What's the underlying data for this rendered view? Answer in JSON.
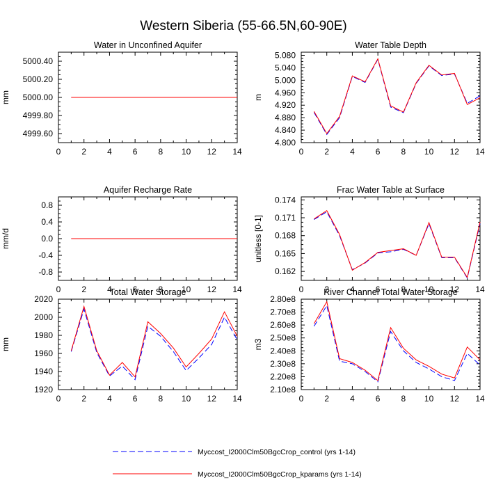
{
  "title": "Western Siberia (55-66.5N,60-90E)",
  "colors": {
    "control": "#0000ff",
    "kparams": "#ff0000",
    "axis": "#000000"
  },
  "legend": [
    {
      "label": "Myccost_I2000Clm50BgcCrop_control (yrs 1-14)",
      "color": "#0000ff",
      "style": "dashed"
    },
    {
      "label": "Myccost_I2000Clm50BgcCrop_kparams (yrs 1-14)",
      "color": "#ff0000",
      "style": "solid"
    }
  ],
  "chart_data": [
    {
      "type": "line",
      "title": "Water in Unconfined Aquifer",
      "ylabel": "mm",
      "xlim": [
        0,
        14
      ],
      "ylim": [
        4999.5,
        5000.5
      ],
      "xticks": [
        0,
        2,
        4,
        6,
        8,
        10,
        12,
        14
      ],
      "yticks": [
        4999.6,
        4999.8,
        5000.0,
        5000.2,
        5000.4
      ],
      "ytick_labels": [
        "4999.60",
        "4999.80",
        "5000.00",
        "5000.20",
        "5000.40"
      ],
      "x": [
        1,
        2,
        3,
        4,
        5,
        6,
        7,
        8,
        9,
        10,
        11,
        12,
        13,
        14
      ],
      "series": [
        {
          "name": "Myccost_I2000Clm50BgcCrop_control (yrs 1-14)",
          "values": [
            5000,
            5000,
            5000,
            5000,
            5000,
            5000,
            5000,
            5000,
            5000,
            5000,
            5000,
            5000,
            5000,
            5000
          ]
        },
        {
          "name": "Myccost_I2000Clm50BgcCrop_kparams (yrs 1-14)",
          "values": [
            5000,
            5000,
            5000,
            5000,
            5000,
            5000,
            5000,
            5000,
            5000,
            5000,
            5000,
            5000,
            5000,
            5000
          ]
        }
      ]
    },
    {
      "type": "line",
      "title": "Water Table Depth",
      "ylabel": "m",
      "xlim": [
        0,
        14
      ],
      "ylim": [
        4.8,
        5.09
      ],
      "xticks": [
        0,
        2,
        4,
        6,
        8,
        10,
        12,
        14
      ],
      "yticks": [
        4.8,
        4.84,
        4.88,
        4.92,
        4.96,
        5.0,
        5.04,
        5.08
      ],
      "ytick_labels": [
        "4.800",
        "4.840",
        "4.880",
        "4.920",
        "4.960",
        "5.000",
        "5.040",
        "5.080"
      ],
      "x": [
        1,
        2,
        3,
        4,
        5,
        6,
        7,
        8,
        9,
        10,
        11,
        12,
        13,
        14
      ],
      "series": [
        {
          "name": "Myccost_I2000Clm50BgcCrop_control (yrs 1-14)",
          "values": [
            4.897,
            4.826,
            4.88,
            5.012,
            4.993,
            5.067,
            4.914,
            4.896,
            4.99,
            5.046,
            5.015,
            5.02,
            4.926,
            4.95
          ]
        },
        {
          "name": "Myccost_I2000Clm50BgcCrop_kparams (yrs 1-14)",
          "values": [
            4.9,
            4.829,
            4.884,
            5.014,
            4.995,
            5.069,
            4.918,
            4.898,
            4.992,
            5.048,
            5.017,
            5.022,
            4.922,
            4.944
          ]
        }
      ]
    },
    {
      "type": "line",
      "title": "Aquifer Recharge Rate",
      "ylabel": "mm/d",
      "xlim": [
        0,
        14
      ],
      "ylim": [
        -1.0,
        1.0
      ],
      "xticks": [
        0,
        2,
        4,
        6,
        8,
        10,
        12,
        14
      ],
      "yticks": [
        -0.8,
        -0.4,
        0.0,
        0.4,
        0.8
      ],
      "ytick_labels": [
        "-0.8",
        "-0.4",
        "0.0",
        "0.4",
        "0.8"
      ],
      "x": [
        1,
        2,
        3,
        4,
        5,
        6,
        7,
        8,
        9,
        10,
        11,
        12,
        13,
        14
      ],
      "series": [
        {
          "name": "Myccost_I2000Clm50BgcCrop_control (yrs 1-14)",
          "values": [
            0,
            0,
            0,
            0,
            0,
            0,
            0,
            0,
            0,
            0,
            0,
            0,
            0,
            0
          ]
        },
        {
          "name": "Myccost_I2000Clm50BgcCrop_kparams (yrs 1-14)",
          "values": [
            0,
            0,
            0,
            0,
            0,
            0,
            0,
            0,
            0,
            0,
            0,
            0,
            0,
            0
          ]
        }
      ]
    },
    {
      "type": "line",
      "title": "Frac Water Table at Surface",
      "ylabel": "unitless [0-1]",
      "xlim": [
        0,
        14
      ],
      "ylim": [
        0.1605,
        0.1745
      ],
      "xticks": [
        0,
        2,
        4,
        6,
        8,
        10,
        12,
        14
      ],
      "yticks": [
        0.162,
        0.165,
        0.168,
        0.171,
        0.174
      ],
      "ytick_labels": [
        "0.162",
        "0.165",
        "0.168",
        "0.171",
        "0.174"
      ],
      "x": [
        1,
        2,
        3,
        4,
        5,
        6,
        7,
        8,
        9,
        10,
        11,
        12,
        13,
        14
      ],
      "series": [
        {
          "name": "Myccost_I2000Clm50BgcCrop_control (yrs 1-14)",
          "values": [
            0.1707,
            0.172,
            0.168,
            0.1623,
            0.1634,
            0.1651,
            0.1653,
            0.1657,
            0.1647,
            0.17,
            0.1643,
            0.1643,
            0.1609,
            0.17
          ]
        },
        {
          "name": "Myccost_I2000Clm50BgcCrop_kparams (yrs 1-14)",
          "values": [
            0.1708,
            0.1722,
            0.1682,
            0.1622,
            0.1635,
            0.1652,
            0.1655,
            0.1658,
            0.1647,
            0.1702,
            0.1644,
            0.1644,
            0.161,
            0.1703
          ]
        }
      ]
    },
    {
      "type": "line",
      "title": "Total Water Storage",
      "ylabel": "mm",
      "xlim": [
        0,
        14
      ],
      "ylim": [
        1920,
        2020
      ],
      "xticks": [
        0,
        2,
        4,
        6,
        8,
        10,
        12,
        14
      ],
      "yticks": [
        1920,
        1940,
        1960,
        1980,
        2000,
        2020
      ],
      "ytick_labels": [
        "1920",
        "1940",
        "1960",
        "1980",
        "2000",
        "2020"
      ],
      "x": [
        1,
        2,
        3,
        4,
        5,
        6,
        7,
        8,
        9,
        10,
        11,
        12,
        13,
        14
      ],
      "series": [
        {
          "name": "Myccost_I2000Clm50BgcCrop_control (yrs 1-14)",
          "values": [
            1962,
            2009,
            1961,
            1935,
            1946,
            1931,
            1990,
            1979,
            1962,
            1941,
            1955,
            1970,
            2000,
            1975
          ]
        },
        {
          "name": "Myccost_I2000Clm50BgcCrop_kparams (yrs 1-14)",
          "values": [
            1963,
            2012,
            1963,
            1936,
            1950,
            1934,
            1995,
            1982,
            1966,
            1945,
            1960,
            1976,
            2006,
            1979
          ]
        }
      ]
    },
    {
      "type": "line",
      "title": "River Channel Total Water Storage",
      "ylabel": "m3",
      "xlim": [
        0,
        14
      ],
      "ylim": [
        210000000.0,
        280000000.0
      ],
      "xticks": [
        0,
        2,
        4,
        6,
        8,
        10,
        12,
        14
      ],
      "yticks": [
        210000000.0,
        220000000.0,
        230000000.0,
        240000000.0,
        250000000.0,
        260000000.0,
        270000000.0,
        280000000.0
      ],
      "ytick_labels": [
        "2.10e8",
        "2.20e8",
        "2.30e8",
        "2.40e8",
        "2.50e8",
        "2.60e8",
        "2.70e8",
        "2.80e8"
      ],
      "x": [
        1,
        2,
        3,
        4,
        5,
        6,
        7,
        8,
        9,
        10,
        11,
        12,
        13,
        14
      ],
      "series": [
        {
          "name": "Myccost_I2000Clm50BgcCrop_control (yrs 1-14)",
          "values": [
            259000000,
            275000000,
            232000000,
            230000000,
            224000000,
            216000000,
            255000000,
            240000000,
            231000000,
            226000000,
            220000000,
            217000000,
            238000000,
            229000000
          ]
        },
        {
          "name": "Myccost_I2000Clm50BgcCrop_kparams (yrs 1-14)",
          "values": [
            261000000,
            278000000,
            234000000,
            231000000,
            225000000,
            217000000,
            258000000,
            242000000,
            233000000,
            228000000,
            222000000,
            219000000,
            243000000,
            233000000
          ]
        }
      ]
    }
  ]
}
